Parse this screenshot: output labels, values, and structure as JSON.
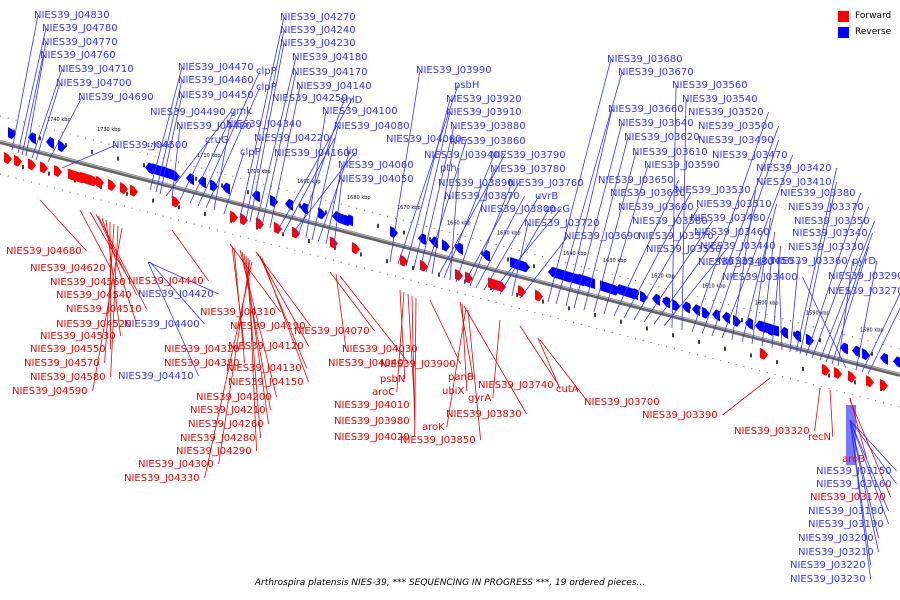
{
  "legend": {
    "forward_label": "Forward",
    "reverse_label": "Reverse",
    "forward_color": "#ff0000",
    "reverse_color": "#0000ff"
  },
  "caption": "Arthrospira platensis NIES-39, *** SEQUENCING IN PROGRESS ***, 19 ordered pieces...",
  "map": {
    "scale_ticks": [
      "1740 kbp",
      "1730 kbp",
      "1720 kbp",
      "1710 kbp",
      "1700 kbp",
      "1690 kbp",
      "1680 kbp",
      "1670 kbp",
      "1660 kbp",
      "1650 kbp",
      "1640 kbp",
      "1630 kbp",
      "1620 kbp",
      "1610 kbp",
      "1600 kbp",
      "1590 kbp",
      "1580 kbp"
    ],
    "genes_reverse": [
      "NIES39_J04830",
      "NIES39_J04780",
      "NIES39_J04770",
      "NIES39_J04760",
      "NIES39_J04710",
      "NIES39_J04700",
      "NIES39_J04690",
      "NIES39_J04500",
      "NIES39_J04470",
      "NIES39_J04460",
      "NIES39_J04450",
      "NIES39_J04490",
      "NIES39_J04480",
      "cruG",
      "gmk",
      "clpP",
      "clpP",
      "NIES39_J04340",
      "clpP",
      "NIES39_J04270",
      "NIES39_J04240",
      "NIES39_J04230",
      "NIES39_J04180",
      "NIES39_J04170",
      "NIES39_J04140",
      "NIES39_J04250",
      "NIES39_J04220",
      "NIES39_J04160",
      "chlD",
      "NIES39_J04100",
      "NIES39_J04080",
      "lig",
      "NIES39_J04060",
      "NIES39_J04050",
      "NIES39_J03990",
      "psbH",
      "NIES39_J03920",
      "NIES39_J03910",
      "NIES39_J03880",
      "NIES39_J04000",
      "NIES39_J03860",
      "NIES39_J03940",
      "NIES39_J03790",
      "pth",
      "NIES39_J03780",
      "NIES39_J03890",
      "NIES39_J03760",
      "NIES39_J03870",
      "uvrB",
      "NIES39_J03800",
      "cpcG",
      "NIES39_J03720",
      "NIES39_J03690",
      "NIES39_J03680",
      "NIES39_J03670",
      "NIES39_J03660",
      "NIES39_J03640",
      "NIES39_J03620",
      "NIES39_J03610",
      "NIES39_J03590",
      "NIES39_J03650",
      "NIES39_J03630",
      "NIES39_J03600",
      "NIES39_J03580",
      "NIES39_J03570",
      "NIES39_J03550",
      "NIES39_J03560",
      "NIES39_J03540",
      "NIES39_J03520",
      "NIES39_J03500",
      "NIES39_J03490",
      "NIES39_J03470",
      "NIES39_J03530",
      "NIES39_J03510",
      "NIES39_J03480",
      "NIES39_J03460",
      "NIES39_J03440",
      "NIES39_J03430",
      "NIES39_J03450",
      "NIES39_J03420",
      "NIES39_J03410",
      "NIES39_J03380",
      "NIES39_J03370",
      "NIES39_J03350",
      "NIES39_J03340",
      "NIES39_J03330",
      "NIES39_J03360",
      "NIES39_J03400",
      "pyrD",
      "NIES39_J03290",
      "NIES39_J03270",
      "NIES39_J04420",
      "NIES39_J04400",
      "NIES39_J04410",
      "NIES39_J03150",
      "NIES39_J03160",
      "NIES39_J03180",
      "NIES39_J03190",
      "NIES39_J03200",
      "NIES39_J03210",
      "NIES39_J03220",
      "NIES39_J03230"
    ],
    "genes_forward": [
      "NIES39_J04680",
      "NIES39_J04620",
      "NIES39_J04560",
      "NIES39_J04540",
      "NIES39_J04510",
      "NIES39_J04520",
      "NIES39_J04530",
      "NIES39_J04550",
      "NIES39_J04570",
      "NIES39_J04580",
      "NIES39_J04590",
      "NIES39_J04440",
      "NIES39_J04310",
      "NIES39_J04320",
      "NIES39_J04380",
      "NIES39_J04190",
      "NIES39_J04120",
      "NIES39_J04130",
      "NIES39_J04150",
      "NIES39_J04200",
      "NIES39_J04210",
      "NIES39_J04260",
      "NIES39_J04280",
      "NIES39_J04290",
      "NIES39_J04300",
      "NIES39_J04330",
      "NIES39_J04070",
      "NIES39_J04030",
      "NIES39_J04040",
      "psbN",
      "aroC",
      "NIES39_J04010",
      "NIES39_J03980",
      "NIES39_J04020",
      "NIES39_J03900",
      "panB",
      "ubiX",
      "NIES39_J03830",
      "aroK",
      "NIES39_J03850",
      "gyrA",
      "NIES39_J03740",
      "cutA",
      "NIES39_J03700",
      "NIES39_J03390",
      "NIES39_J03320",
      "recN",
      "aroB",
      "NIES39_J03170"
    ]
  }
}
